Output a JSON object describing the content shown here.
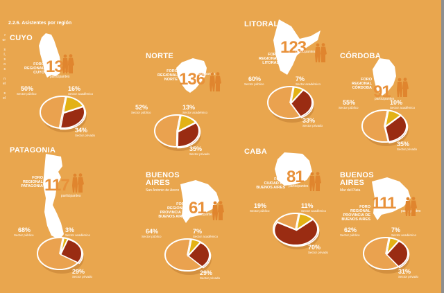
{
  "section_title": "2.2.6. Asistentes por región",
  "colors": {
    "background": "#e9a64e",
    "sector_publico": "#eaa24f",
    "sector_academico": "#e3b215",
    "sector_privado": "#9a2c12",
    "participants_number": "#e8913a",
    "rim": "#ffffff"
  },
  "labels": {
    "participantes": "participantes",
    "sector_publico": "Sector público",
    "sector_academico": "Sector académico",
    "sector_privado": "Sector privado"
  },
  "regions": [
    {
      "name": "CUYO",
      "sub": "",
      "foro": "FORO\nREGIONAL\nCUYO",
      "participants": "131",
      "publico": "50%",
      "academico": "16%",
      "privado": "34%"
    },
    {
      "name": "NORTE",
      "sub": "",
      "foro": "FORO\nREGIONAL\nNORTE",
      "participants": "136",
      "publico": "52%",
      "academico": "13%",
      "privado": "35%"
    },
    {
      "name": "LITORAL",
      "sub": "",
      "foro": "FORO\nREGIONAL\nLITORAL",
      "participants": "123",
      "publico": "60%",
      "academico": "7%",
      "privado": "33%"
    },
    {
      "name": "CÓRDOBA",
      "sub": "",
      "foro": "FORO\nREGIONAL\nCÓRDOBA",
      "participants": "91",
      "publico": "55%",
      "academico": "10%",
      "privado": "35%"
    },
    {
      "name": "PATAGONIA",
      "sub": "",
      "foro": "FORO\nREGIONAL\nPATAGONIA",
      "participants": "117",
      "publico": "68%",
      "academico": "3%",
      "privado": "29%"
    },
    {
      "name": "BUENOS\nAIRES",
      "sub": "San Antonio de Areco",
      "foro": "FORO\nREGIONAL\nPROVINCIA DE\nBUENOS AIRES",
      "participants": "61",
      "publico": "64%",
      "academico": "7%",
      "privado": "29%"
    },
    {
      "name": "CABA",
      "sub": "",
      "foro": "FORO\nCIUDAD DE\nBUENOS AIRES",
      "participants": "81",
      "publico": "19%",
      "academico": "11%",
      "privado": "70%"
    },
    {
      "name": "BUENOS\nAIRES",
      "sub": "Mar del Plata",
      "foro": "FORO\nREGIONAL\nPROVINCIA DE\nBUENOS AIRES",
      "participants": "111",
      "publico": "62%",
      "academico": "7%",
      "privado": "31%"
    }
  ],
  "chart_data": [
    {
      "type": "pie",
      "title": "CUYO",
      "subtitle": "Foro Regional Cuyo — 131 participantes",
      "categories": [
        "Sector público",
        "Sector académico",
        "Sector privado"
      ],
      "values": [
        50,
        16,
        34
      ]
    },
    {
      "type": "pie",
      "title": "NORTE",
      "subtitle": "Foro Regional Norte — 136 participantes",
      "categories": [
        "Sector público",
        "Sector académico",
        "Sector privado"
      ],
      "values": [
        52,
        13,
        35
      ]
    },
    {
      "type": "pie",
      "title": "LITORAL",
      "subtitle": "Foro Regional Litoral — 123 participantes",
      "categories": [
        "Sector público",
        "Sector académico",
        "Sector privado"
      ],
      "values": [
        60,
        7,
        33
      ]
    },
    {
      "type": "pie",
      "title": "CÓRDOBA",
      "subtitle": "Foro Regional Córdoba — 91 participantes",
      "categories": [
        "Sector público",
        "Sector académico",
        "Sector privado"
      ],
      "values": [
        55,
        10,
        35
      ]
    },
    {
      "type": "pie",
      "title": "PATAGONIA",
      "subtitle": "Foro Regional Patagonia — 117 participantes",
      "categories": [
        "Sector público",
        "Sector académico",
        "Sector privado"
      ],
      "values": [
        68,
        3,
        29
      ]
    },
    {
      "type": "pie",
      "title": "BUENOS AIRES (San Antonio de Areco)",
      "subtitle": "Foro Regional Provincia de Buenos Aires — 61 participantes",
      "categories": [
        "Sector público",
        "Sector académico",
        "Sector privado"
      ],
      "values": [
        64,
        7,
        29
      ]
    },
    {
      "type": "pie",
      "title": "CABA",
      "subtitle": "Foro Ciudad de Buenos Aires — 81 participantes",
      "categories": [
        "Sector público",
        "Sector académico",
        "Sector privado"
      ],
      "values": [
        19,
        11,
        70
      ]
    },
    {
      "type": "pie",
      "title": "BUENOS AIRES (Mar del Plata)",
      "subtitle": "Foro Regional Provincia de Buenos Aires — 111 participantes",
      "categories": [
        "Sector público",
        "Sector académico",
        "Sector privado"
      ],
      "values": [
        62,
        7,
        31
      ]
    }
  ]
}
